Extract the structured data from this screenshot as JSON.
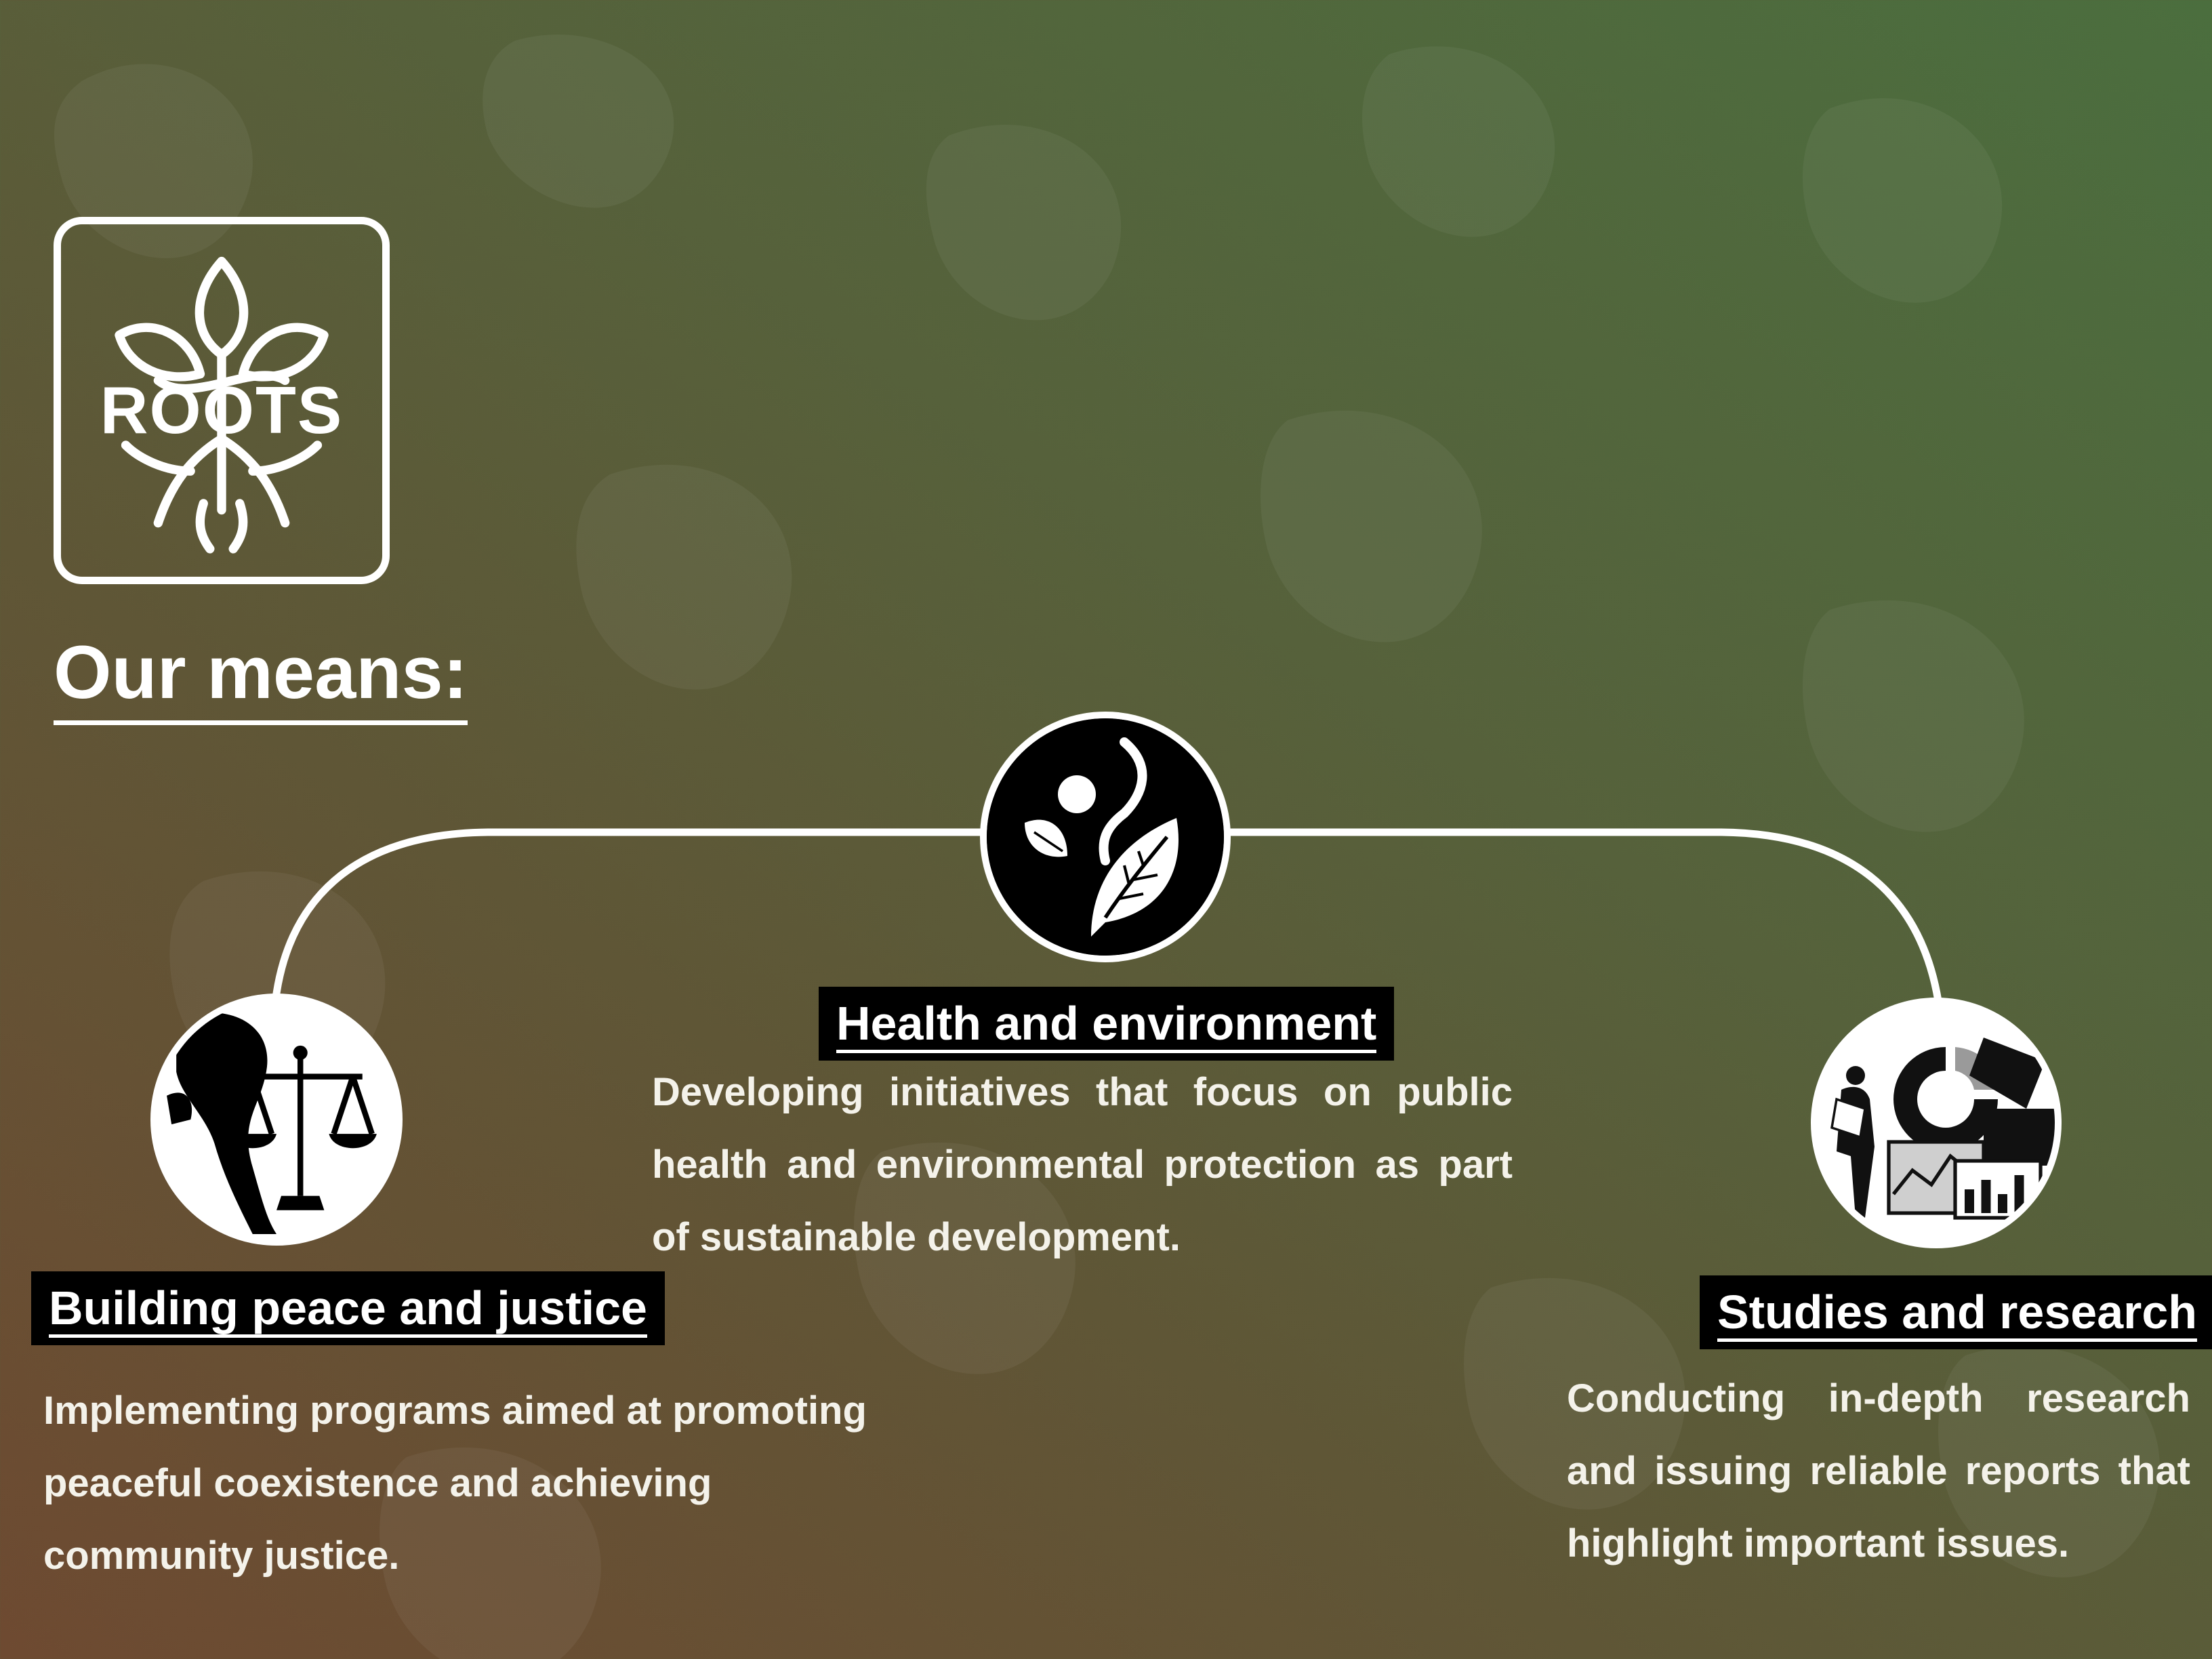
{
  "brand": {
    "name": "ROOTS"
  },
  "page": {
    "heading": "Our means:"
  },
  "means": [
    {
      "title": "Building peace and justice",
      "description": "Implementing programs aimed at promoting peaceful coexistence and achieving community justice.",
      "icon": "scales-of-justice-icon"
    },
    {
      "title": "Health and environment",
      "description": "Developing initiatives that focus on public health and environmental protection as part of sustainable development.",
      "icon": "person-leaf-icon"
    },
    {
      "title": "Studies and research",
      "description": "Conducting in-depth research and issuing reliable reports that highlight important issues.",
      "icon": "research-charts-icon"
    }
  ],
  "colors": {
    "gradient_left": "#6e4a31",
    "gradient_right": "#4b6e3e",
    "label_background": "#000000",
    "text": "#ffffff"
  }
}
